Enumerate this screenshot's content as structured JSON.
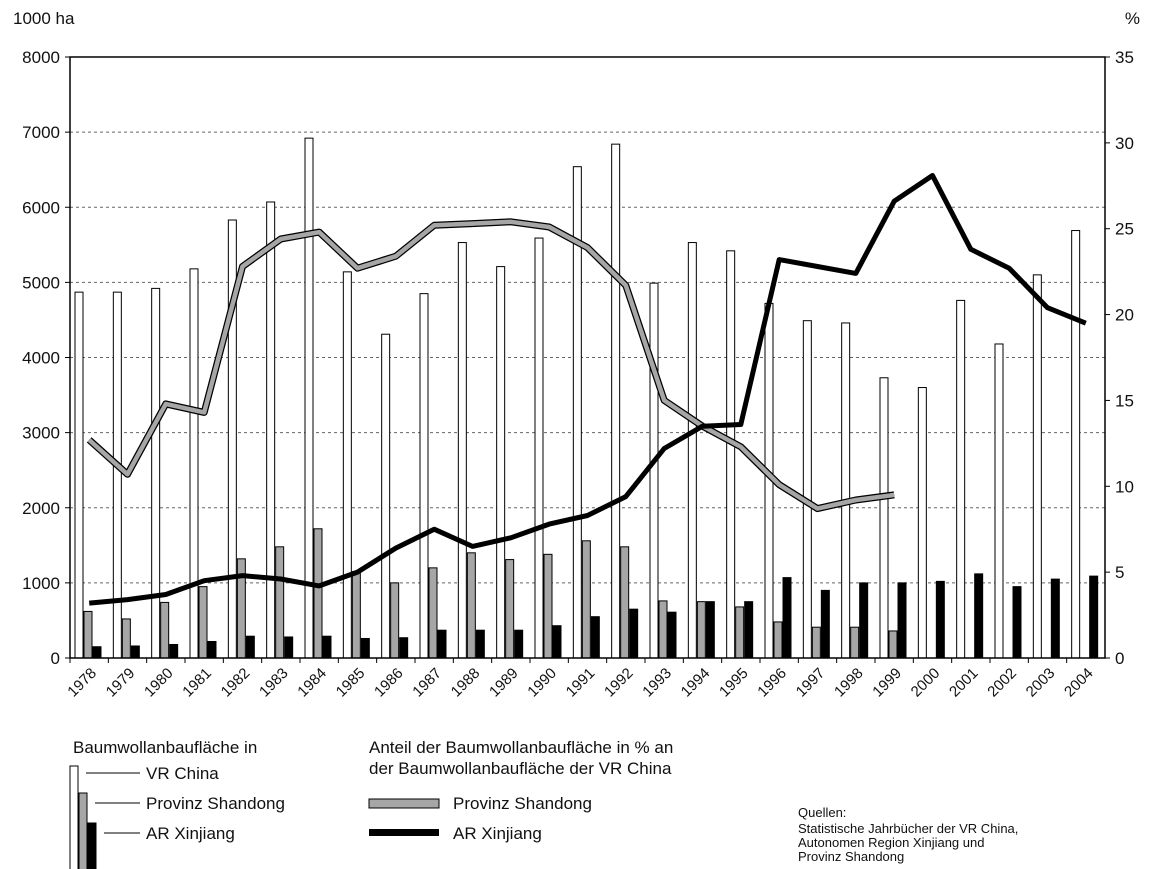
{
  "chart_data": {
    "type": "bar",
    "categories": [
      "1978",
      "1979",
      "1980",
      "1981",
      "1982",
      "1983",
      "1984",
      "1985",
      "1986",
      "1987",
      "1988",
      "1989",
      "1990",
      "1991",
      "1992",
      "1993",
      "1994",
      "1995",
      "1996",
      "1997",
      "1998",
      "1999",
      "2000",
      "2001",
      "2002",
      "2003",
      "2004"
    ],
    "y_left_unit": "1000 ha",
    "y_right_unit": "%",
    "ylim_left": [
      0,
      8000
    ],
    "ylim_right": [
      0,
      35
    ],
    "yticks_left": [
      0,
      1000,
      2000,
      3000,
      4000,
      5000,
      6000,
      7000,
      8000
    ],
    "yticks_right": [
      0,
      5,
      10,
      15,
      20,
      25,
      30,
      35
    ],
    "grid": "horizontal dashed",
    "bar_series": [
      {
        "name": "VR China",
        "axis": "left",
        "color": "#ffffff",
        "values": [
          4870,
          4870,
          4920,
          5180,
          5830,
          6070,
          6920,
          5140,
          4310,
          4850,
          5530,
          5210,
          5590,
          6540,
          6840,
          4990,
          5530,
          5420,
          4720,
          4490,
          4460,
          3730,
          3600,
          4760,
          4180,
          5100,
          5690
        ]
      },
      {
        "name": "Provinz Shandong",
        "axis": "left",
        "color": "#a6a6a6",
        "values": [
          620,
          520,
          740,
          950,
          1320,
          1480,
          1720,
          1150,
          1000,
          1200,
          1400,
          1310,
          1380,
          1560,
          1480,
          760,
          750,
          680,
          480,
          410,
          410,
          360,
          null,
          null,
          null,
          null,
          null
        ]
      },
      {
        "name": "AR Xinjiang",
        "axis": "left",
        "color": "#000000",
        "values": [
          150,
          160,
          180,
          220,
          290,
          280,
          290,
          260,
          270,
          370,
          370,
          370,
          430,
          550,
          650,
          610,
          750,
          750,
          1070,
          900,
          1000,
          1000,
          1020,
          1120,
          950,
          1050,
          1090
        ]
      }
    ],
    "line_series": [
      {
        "name": "Provinz Shandong",
        "axis": "right",
        "color": "#a6a6a6",
        "values": [
          12.7,
          10.7,
          14.8,
          14.3,
          22.8,
          24.4,
          24.8,
          22.7,
          23.4,
          25.2,
          25.3,
          25.4,
          25.1,
          23.9,
          21.7,
          15.0,
          13.5,
          12.3,
          10.1,
          8.7,
          9.2,
          9.5,
          null,
          null,
          null,
          null,
          null
        ]
      },
      {
        "name": "AR Xinjiang",
        "axis": "right",
        "color": "#000000",
        "values": [
          3.2,
          3.4,
          3.7,
          4.5,
          4.8,
          4.6,
          4.2,
          5.0,
          6.4,
          7.5,
          6.5,
          7.0,
          7.8,
          8.3,
          9.4,
          12.2,
          13.5,
          13.6,
          23.2,
          22.8,
          22.4,
          26.6,
          28.1,
          23.8,
          22.7,
          20.4,
          19.5
        ]
      }
    ]
  },
  "legend": {
    "bars_title": "Baumwollanbaufläche in",
    "bar_items": [
      "VR China",
      "Provinz Shandong",
      "AR Xinjiang"
    ],
    "lines_title_1": "Anteil der Baumwollanbaufläche in % an",
    "lines_title_2": "der Baumwollanbaufläche der VR China",
    "line_items": [
      "Provinz Shandong",
      "AR Xinjiang"
    ]
  },
  "sources": {
    "title": "Quellen:",
    "line1": "Statistische Jahrbücher der VR China,",
    "line2": "Autonomen Region Xinjiang und",
    "line3": "Provinz Shandong"
  },
  "colors": {
    "grid": "#666666",
    "axis": "#000000",
    "shandong": "#a6a6a6",
    "xinjiang": "#000000",
    "china": "#ffffff"
  }
}
